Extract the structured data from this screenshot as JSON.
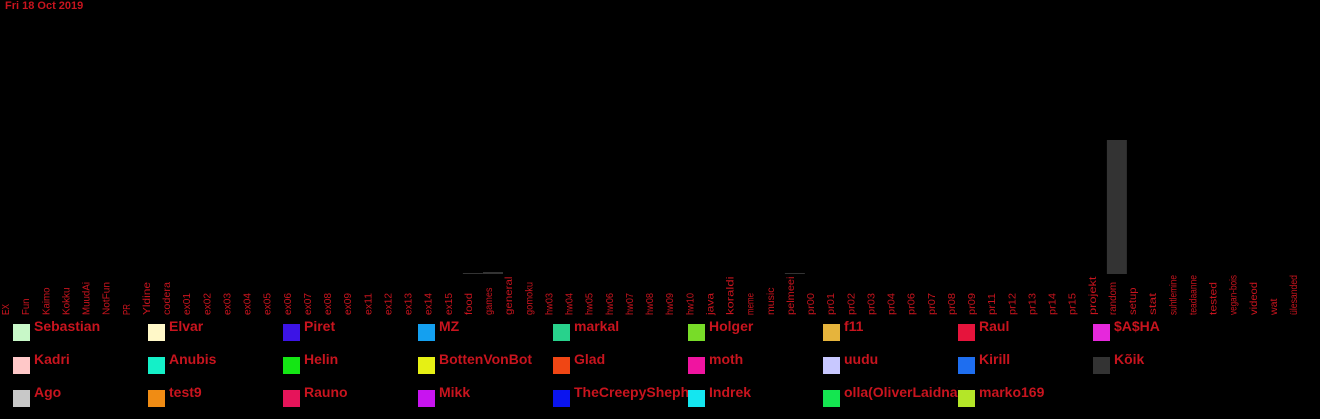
{
  "date": "Fri 18 Oct 2019",
  "chart_data": {
    "type": "bar",
    "stacked": true,
    "title": "",
    "xlabel": "",
    "ylabel": "",
    "categories": [
      "EX",
      "Fun",
      "Kaimo",
      "Kokku",
      "MuudAi",
      "NotFun",
      "PR",
      "Yldine",
      "codera",
      "ex01",
      "ex02",
      "ex03",
      "ex04",
      "ex05",
      "ex06",
      "ex07",
      "ex08",
      "ex09",
      "ex11",
      "ex12",
      "ex13",
      "ex14",
      "ex15",
      "food",
      "games",
      "general",
      "gomoku",
      "hw03",
      "hw04",
      "hw05",
      "hw06",
      "hw07",
      "hw08",
      "hw09",
      "hw10",
      "java",
      "koraldi",
      "meme",
      "music",
      "pelmeei",
      "pr00",
      "pr01",
      "pr02",
      "pr03",
      "pr04",
      "pr06",
      "pr07",
      "pr08",
      "pr09",
      "pr11",
      "pr12",
      "pr13",
      "pr14",
      "pr15",
      "projekt",
      "random",
      "setup",
      "stat",
      "suhtlemine",
      "teadaanne",
      "tested",
      "vegan-bois",
      "videod",
      "wat",
      "ülesanded"
    ],
    "series": [
      {
        "name": "Kõik",
        "color": "#333333",
        "values": [
          0,
          0,
          0,
          0,
          0,
          0,
          0,
          0,
          0,
          0,
          0,
          0,
          0,
          0,
          0,
          0,
          0,
          0,
          0,
          0,
          0,
          0,
          0,
          1,
          2,
          0,
          0,
          0,
          0,
          0,
          0,
          0,
          0,
          0,
          0,
          0,
          0,
          0,
          0,
          1,
          0,
          0,
          0,
          0,
          0,
          0,
          0,
          0,
          0,
          0,
          0,
          0,
          0,
          0,
          0,
          134,
          0,
          0,
          0,
          0,
          0,
          0,
          0,
          0,
          0
        ]
      }
    ],
    "legend": [
      {
        "name": "Sebastian",
        "color": "#c8f8c8"
      },
      {
        "name": "Elvar",
        "color": "#fff8c8"
      },
      {
        "name": "Piret",
        "color": "#3c14e6"
      },
      {
        "name": "MZ",
        "color": "#14a0f0"
      },
      {
        "name": "markal",
        "color": "#28d28c"
      },
      {
        "name": "Holger",
        "color": "#78dc28"
      },
      {
        "name": "f11",
        "color": "#e6b43c"
      },
      {
        "name": "Raul",
        "color": "#e6143c"
      },
      {
        "name": "$A$HA",
        "color": "#e628dc"
      },
      {
        "name": "Kadri",
        "color": "#ffc8c8"
      },
      {
        "name": "Anubis",
        "color": "#14f0c8"
      },
      {
        "name": "Helin",
        "color": "#14e614"
      },
      {
        "name": "BottenVonBot",
        "color": "#e6f014"
      },
      {
        "name": "Glad",
        "color": "#f04614"
      },
      {
        "name": "moth",
        "color": "#f014a0"
      },
      {
        "name": "uudu",
        "color": "#c8c8ff"
      },
      {
        "name": "Kirill",
        "color": "#1e6ef0"
      },
      {
        "name": "Kõik",
        "color": "#333333"
      },
      {
        "name": "Ago",
        "color": "#c8c8c8"
      },
      {
        "name": "test9",
        "color": "#f08c14"
      },
      {
        "name": "Rauno",
        "color": "#e6145a"
      },
      {
        "name": "Mikk",
        "color": "#c814f0"
      },
      {
        "name": "TheCreepyShepherd",
        "color": "#0a14f0"
      },
      {
        "name": "Indrek",
        "color": "#14e6f0"
      },
      {
        "name": "olla(OliverLaidna)",
        "color": "#14e650"
      },
      {
        "name": "marko169",
        "color": "#b4e628"
      }
    ]
  }
}
